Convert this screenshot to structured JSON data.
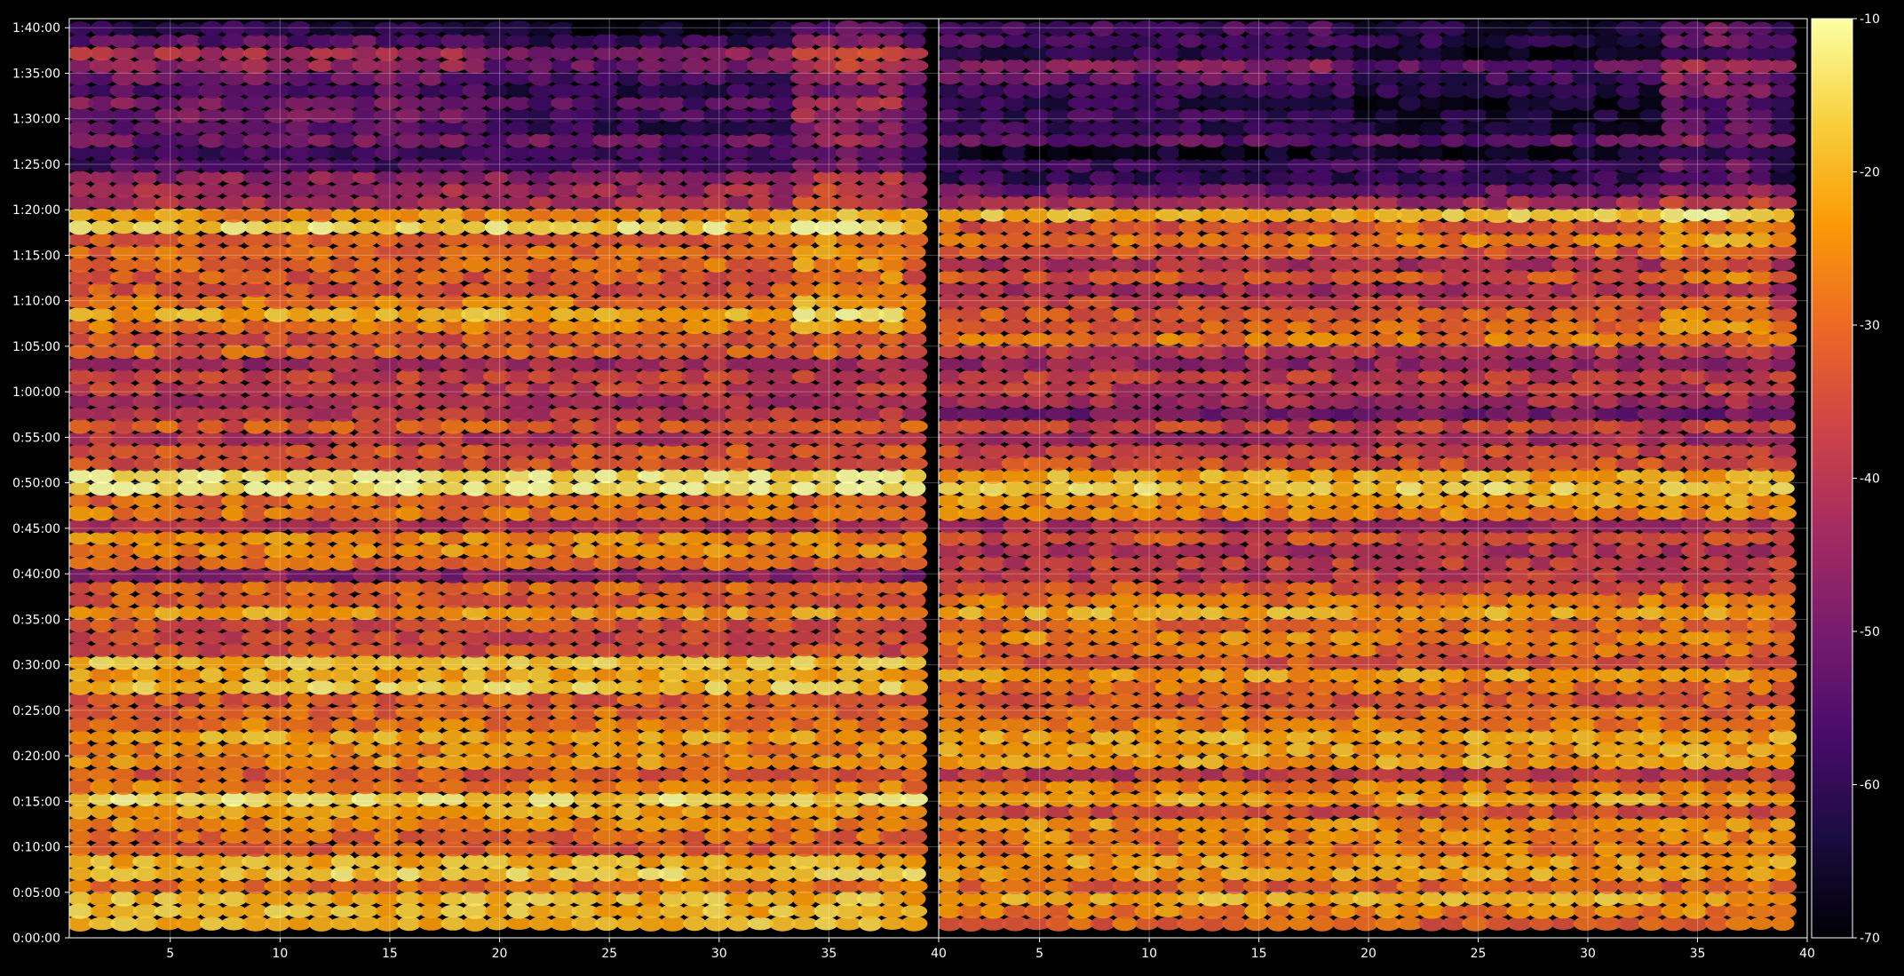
{
  "chart_data": {
    "type": "heatmap",
    "title": "",
    "background": "#000000",
    "grid": true,
    "colormap": "inferno",
    "colormap_stops": [
      "#000004",
      "#1b0c41",
      "#4a0c6b",
      "#781c6d",
      "#a52c60",
      "#cf4446",
      "#ed6925",
      "#fb9b06",
      "#f7d13d",
      "#fcffa4"
    ],
    "x_domain_units": "track index",
    "x_ticks": [
      5,
      10,
      15,
      20,
      25,
      30,
      35,
      40
    ],
    "x_tick_labels": [
      "5",
      "10",
      "15",
      "20",
      "25",
      "30",
      "35",
      "40"
    ],
    "y_unit": "seconds",
    "y_range_seconds": [
      0,
      6060
    ],
    "y_ticks_seconds": [
      0,
      300,
      600,
      900,
      1200,
      1500,
      1800,
      2100,
      2400,
      2700,
      3000,
      3300,
      3600,
      3900,
      4200,
      4500,
      4800,
      5100,
      5400,
      5700,
      6000
    ],
    "y_tick_labels": [
      "0:00:00",
      "0:05:00",
      "0:10:00",
      "0:15:00",
      "0:20:00",
      "0:25:00",
      "0:30:00",
      "0:35:00",
      "0:40:00",
      "0:45:00",
      "0:50:00",
      "0:55:00",
      "1:00:00",
      "1:05:00",
      "1:10:00",
      "1:15:00",
      "1:20:00",
      "1:25:00",
      "1:30:00",
      "1:35:00",
      "1:40:00"
    ],
    "color_range": [
      -70,
      -10
    ],
    "colorbar_ticks": [
      -10,
      -20,
      -30,
      -40,
      -50,
      -60,
      -70
    ],
    "colorbar_tick_labels": [
      "-10",
      "-20",
      "-30",
      "-40",
      "-50",
      "-60",
      "-70"
    ],
    "panels": [
      {
        "name": "left",
        "x_range": [
          1,
          40
        ],
        "band_levels": [
          {
            "t": 120,
            "v": -22
          },
          {
            "t": 200,
            "v": -25
          },
          {
            "t": 260,
            "v": -26
          },
          {
            "t": 360,
            "v": -27
          },
          {
            "t": 440,
            "v": -18
          },
          {
            "t": 480,
            "v": -16
          },
          {
            "t": 560,
            "v": -28
          },
          {
            "t": 710,
            "v": -26
          },
          {
            "t": 780,
            "v": -27
          },
          {
            "t": 935,
            "v": -16
          },
          {
            "t": 1080,
            "v": -30
          },
          {
            "t": 1150,
            "v": -21
          },
          {
            "t": 1180,
            "v": -22
          },
          {
            "t": 1340,
            "v": -18
          },
          {
            "t": 1480,
            "v": -25
          },
          {
            "t": 1620,
            "v": -24
          },
          {
            "t": 1720,
            "v": -22
          },
          {
            "t": 1820,
            "v": -25
          },
          {
            "t": 1960,
            "v": -30
          },
          {
            "t": 2180,
            "v": -22
          },
          {
            "t": 2240,
            "v": -26
          },
          {
            "t": 2420,
            "v": -43
          },
          {
            "t": 2600,
            "v": -27
          },
          {
            "t": 2680,
            "v": -36
          },
          {
            "t": 2860,
            "v": -26
          },
          {
            "t": 3000,
            "v": -16
          },
          {
            "t": 3160,
            "v": -32
          },
          {
            "t": 3280,
            "v": -45
          },
          {
            "t": 3400,
            "v": -32
          },
          {
            "t": 3500,
            "v": -42
          },
          {
            "t": 3570,
            "v": -33
          },
          {
            "t": 3620,
            "v": -34
          },
          {
            "t": 3760,
            "v": -38
          },
          {
            "t": 3910,
            "v": -23
          },
          {
            "t": 4020,
            "v": -31
          },
          {
            "t": 4150,
            "v": -27
          },
          {
            "t": 4240,
            "v": -36
          },
          {
            "t": 4360,
            "v": -33
          },
          {
            "t": 4480,
            "v": -32
          },
          {
            "t": 4620,
            "v": -23
          },
          {
            "t": 4700,
            "v": -20
          },
          {
            "t": 4780,
            "v": -22
          },
          {
            "t": 4940,
            "v": -52
          },
          {
            "t": 5100,
            "v": -54
          },
          {
            "t": 5240,
            "v": -55
          },
          {
            "t": 5340,
            "v": -55
          },
          {
            "t": 5580,
            "v": -50
          },
          {
            "t": 5760,
            "v": -47
          },
          {
            "t": 5900,
            "v": -52
          },
          {
            "t": 6040,
            "v": -54
          }
        ]
      },
      {
        "name": "right",
        "x_range": [
          1,
          40
        ],
        "band_levels": [
          {
            "t": 120,
            "v": -25
          },
          {
            "t": 200,
            "v": -27
          },
          {
            "t": 260,
            "v": -28
          },
          {
            "t": 360,
            "v": -29
          },
          {
            "t": 440,
            "v": -20
          },
          {
            "t": 480,
            "v": -18
          },
          {
            "t": 560,
            "v": -30
          },
          {
            "t": 710,
            "v": -28
          },
          {
            "t": 780,
            "v": -30
          },
          {
            "t": 935,
            "v": -20
          },
          {
            "t": 1080,
            "v": -32
          },
          {
            "t": 1150,
            "v": -24
          },
          {
            "t": 1180,
            "v": -25
          },
          {
            "t": 1340,
            "v": -22
          },
          {
            "t": 1480,
            "v": -27
          },
          {
            "t": 1620,
            "v": -26
          },
          {
            "t": 1720,
            "v": -25
          },
          {
            "t": 1820,
            "v": -28
          },
          {
            "t": 1960,
            "v": -33
          },
          {
            "t": 2180,
            "v": -24
          },
          {
            "t": 2240,
            "v": -28
          },
          {
            "t": 2420,
            "v": -46
          },
          {
            "t": 2600,
            "v": -30
          },
          {
            "t": 2680,
            "v": -40
          },
          {
            "t": 2860,
            "v": -30
          },
          {
            "t": 3000,
            "v": -19
          },
          {
            "t": 3160,
            "v": -36
          },
          {
            "t": 3280,
            "v": -50
          },
          {
            "t": 3400,
            "v": -36
          },
          {
            "t": 3500,
            "v": -47
          },
          {
            "t": 3570,
            "v": -38
          },
          {
            "t": 3620,
            "v": -38
          },
          {
            "t": 3760,
            "v": -42
          },
          {
            "t": 3910,
            "v": -27
          },
          {
            "t": 4020,
            "v": -36
          },
          {
            "t": 4150,
            "v": -31
          },
          {
            "t": 4240,
            "v": -42
          },
          {
            "t": 4360,
            "v": -38
          },
          {
            "t": 4480,
            "v": -36
          },
          {
            "t": 4620,
            "v": -27
          },
          {
            "t": 4700,
            "v": -25
          },
          {
            "t": 4780,
            "v": -26
          },
          {
            "t": 4940,
            "v": -58
          },
          {
            "t": 5100,
            "v": -60
          },
          {
            "t": 5240,
            "v": -61
          },
          {
            "t": 5340,
            "v": -60
          },
          {
            "t": 5580,
            "v": -55
          },
          {
            "t": 5760,
            "v": -52
          },
          {
            "t": 5900,
            "v": -58
          },
          {
            "t": 6040,
            "v": -60
          }
        ]
      }
    ]
  }
}
